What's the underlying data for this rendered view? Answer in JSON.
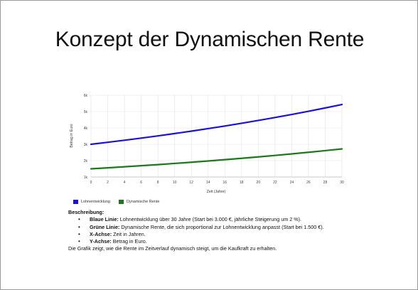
{
  "slide": {
    "title": "Konzept der Dynamischen Rente"
  },
  "chart_data": {
    "type": "line",
    "x": [
      0,
      2,
      4,
      6,
      8,
      10,
      12,
      14,
      16,
      18,
      20,
      22,
      24,
      26,
      28,
      30
    ],
    "xticks": [
      "0",
      "2",
      "4",
      "6",
      "8",
      "10",
      "12",
      "14",
      "16",
      "18",
      "20",
      "22",
      "24",
      "26",
      "28",
      "30"
    ],
    "yticks": [
      "1k",
      "2k",
      "3k",
      "4k",
      "5k",
      "6k"
    ],
    "ylim": [
      1000,
      6000
    ],
    "xlim": [
      0,
      30
    ],
    "xlabel": "Zeit (Jahre)",
    "ylabel": "Betrag in Euro",
    "grid": true,
    "series": [
      {
        "name": "Lohnentwicklung",
        "color": "#1a10e0",
        "values": [
          3000,
          3121,
          3247,
          3378,
          3515,
          3657,
          3804,
          3958,
          4118,
          4285,
          4458,
          4638,
          4825,
          5020,
          5223,
          5434
        ]
      },
      {
        "name": "Dynamische Rente",
        "color": "#1a7a1a",
        "values": [
          1500,
          1561,
          1624,
          1689,
          1757,
          1828,
          1902,
          1979,
          2059,
          2142,
          2229,
          2319,
          2413,
          2510,
          2611,
          2717
        ]
      }
    ],
    "legend_position": "bottom-left"
  },
  "description": {
    "heading": "Beschreibung:",
    "items": [
      {
        "label": "Blaue Linie:",
        "text": " Lohnentwicklung über 30 Jahre (Start bei 3.000 €, jährliche Steigerung um 2 %)."
      },
      {
        "label": "Grüne Linie:",
        "text": " Dynamische Rente, die sich proportional zur Lohnentwicklung anpasst (Start bei 1.500 €)."
      },
      {
        "label": "X-Achse:",
        "text": " Zeit in Jahren."
      },
      {
        "label": "Y-Achse:",
        "text": " Betrag in Euro."
      }
    ],
    "footer": "Die Grafik zeigt, wie die Rente im Zeitverlauf dynamisch steigt, um die Kaufkraft zu erhalten."
  }
}
